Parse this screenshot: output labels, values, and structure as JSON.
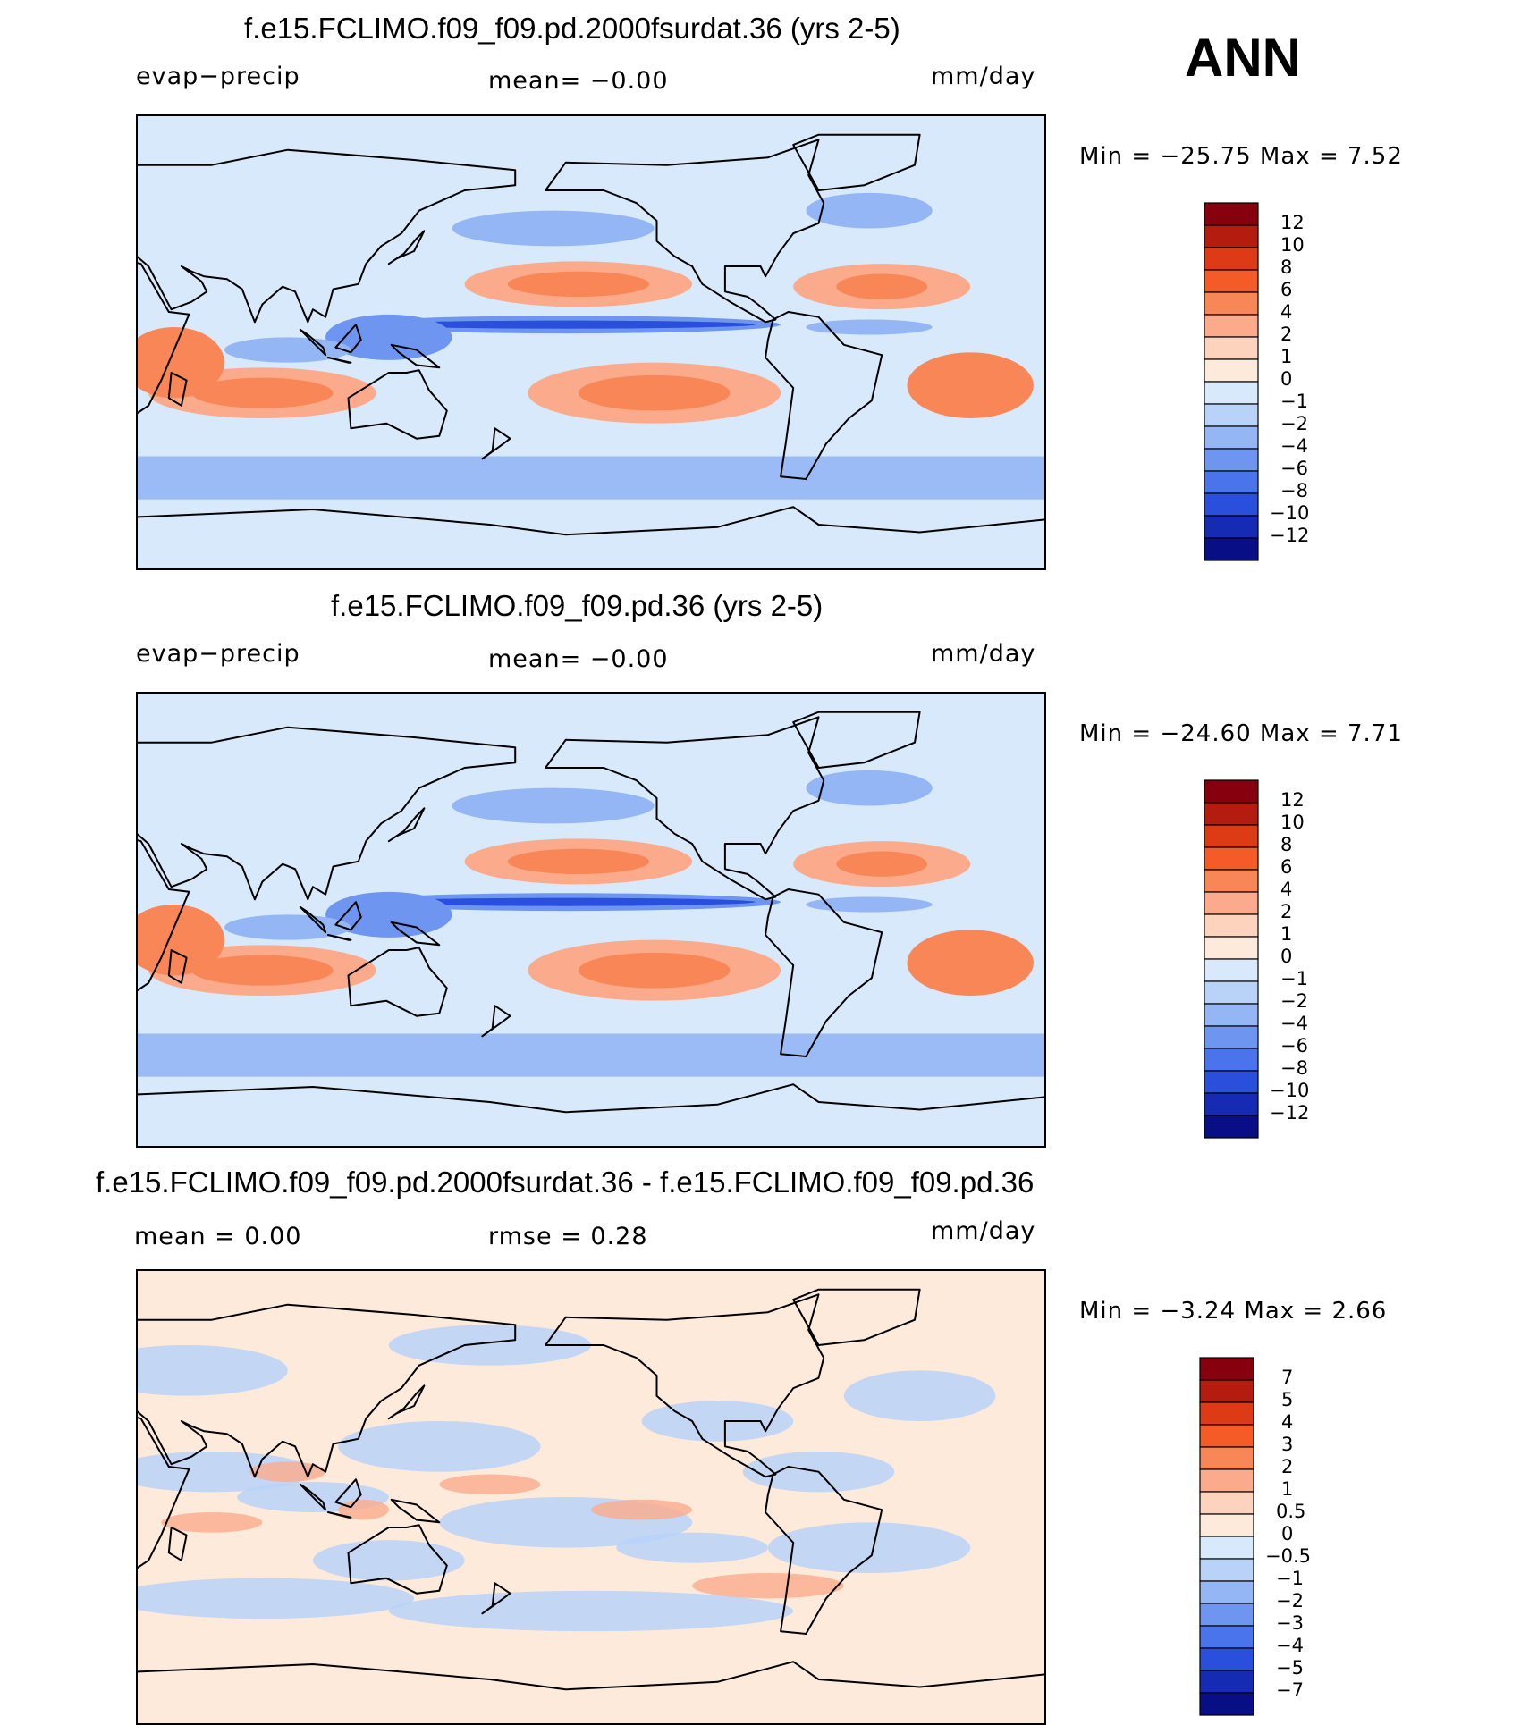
{
  "season": "ANN",
  "colors": {
    "scale_12": [
      "#87000d",
      "#b41c0f",
      "#dc3b16",
      "#f45b26",
      "#f98656",
      "#fbab8c",
      "#fdd3bd",
      "#fdeadb",
      "#d7e9fb",
      "#b8d2f8",
      "#95b6f5",
      "#6e96f0",
      "#4a74ec",
      "#2a4fdc",
      "#162bb3",
      "#080f86"
    ],
    "scale_diff": [
      "#87000d",
      "#b41c0f",
      "#dc3b16",
      "#f45b26",
      "#f98656",
      "#fbab8c",
      "#fdd3bd",
      "#fdeadb",
      "#d7e9fb",
      "#b8d2f8",
      "#95b6f5",
      "#6e96f0",
      "#4a74ec",
      "#2a4fdc",
      "#162bb3",
      "#080f86"
    ]
  },
  "panels": [
    {
      "title": "f.e15.FCLIMO.f09_f09.pd.2000fsurdat.36 (yrs 2-5)",
      "left_label": "evap−precip",
      "center_label": "mean=   −0.00",
      "units": "mm/day",
      "min_label": "Min  =  −25.75  Max  =      7.52",
      "colorbar_levels": [
        "12",
        "10",
        "8",
        "6",
        "4",
        "2",
        "1",
        "0",
        "−1",
        "−2",
        "−4",
        "−6",
        "−8",
        "−10",
        "−12"
      ]
    },
    {
      "title": "f.e15.FCLIMO.f09_f09.pd.36 (yrs 2-5)",
      "left_label": "evap−precip",
      "center_label": "mean=   −0.00",
      "units": "mm/day",
      "min_label": "Min  =  −24.60  Max  =      7.71",
      "colorbar_levels": [
        "12",
        "10",
        "8",
        "6",
        "4",
        "2",
        "1",
        "0",
        "−1",
        "−2",
        "−4",
        "−6",
        "−8",
        "−10",
        "−12"
      ]
    },
    {
      "title": "f.e15.FCLIMO.f09_f09.pd.2000fsurdat.36 - f.e15.FCLIMO.f09_f09.pd.36",
      "left_label": "mean  =      0.00",
      "center_label": "rmse  =      0.28",
      "units": "mm/day",
      "min_label": "Min  =      −3.24  Max  =      2.66",
      "colorbar_levels": [
        "7",
        "5",
        "4",
        "3",
        "2",
        "1",
        "0.5",
        "0",
        "−0.5",
        "−1",
        "−2",
        "−3",
        "−4",
        "−5",
        "−7"
      ]
    }
  ]
}
